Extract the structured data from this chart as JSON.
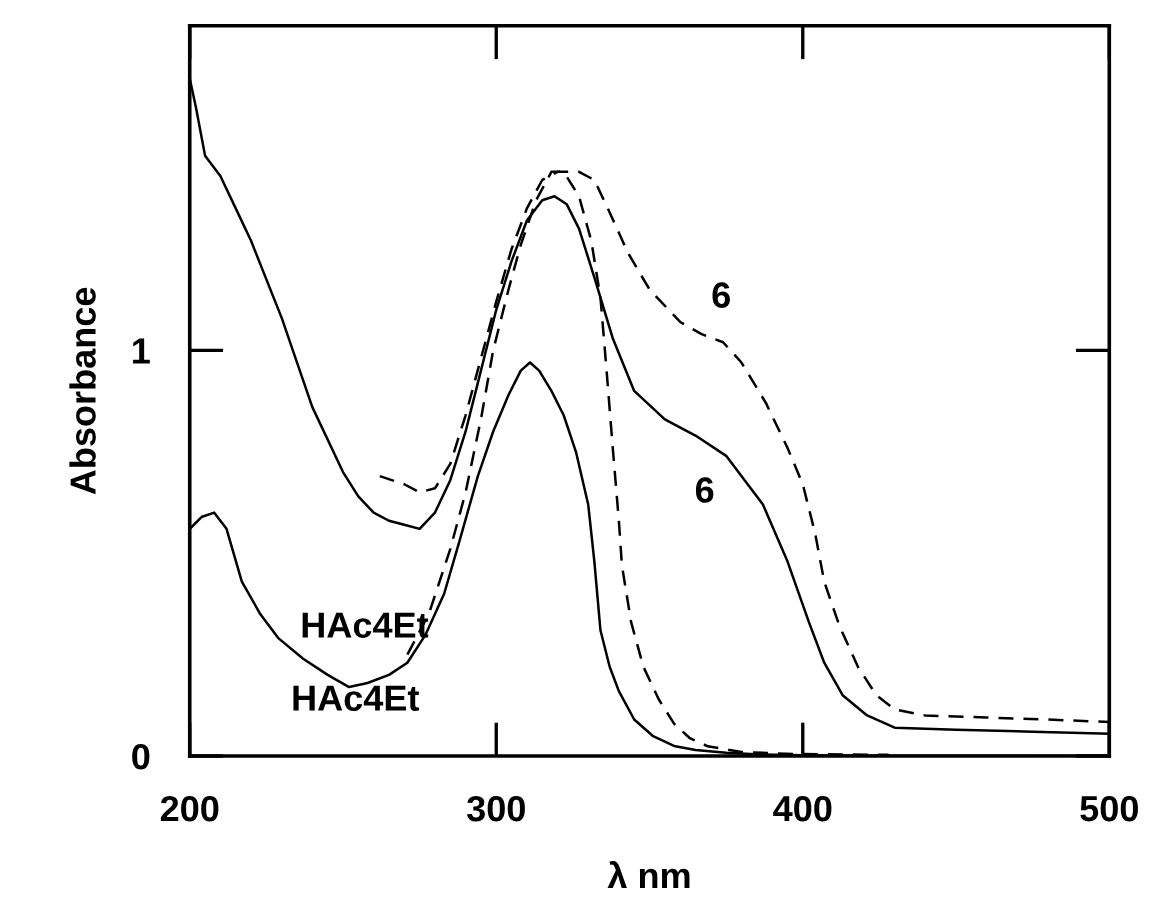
{
  "chart_data": {
    "type": "line",
    "xlabel": "λ nm",
    "ylabel": "Absorbance",
    "xlim": [
      200,
      500
    ],
    "ylim": [
      0,
      1.8
    ],
    "xticks": [
      200,
      300,
      400,
      500
    ],
    "yticks": [
      0,
      1
    ],
    "grid": false,
    "marker": "none",
    "series": [
      {
        "color": "#000000",
        "line_style": "solid",
        "x": [
          200,
          202,
          205,
          210,
          215,
          220,
          230,
          240,
          250,
          255,
          260,
          265,
          270,
          275,
          280,
          285,
          290,
          295,
          300,
          305,
          310,
          315,
          319,
          323,
          327,
          332,
          338,
          345,
          355,
          365,
          375,
          387,
          395,
          402,
          407,
          413,
          421,
          430,
          450,
          475,
          500
        ],
        "values": [
          1.67,
          1.6,
          1.48,
          1.43,
          1.35,
          1.27,
          1.08,
          0.86,
          0.7,
          0.64,
          0.6,
          0.58,
          0.57,
          0.56,
          0.6,
          0.68,
          0.8,
          0.95,
          1.1,
          1.22,
          1.32,
          1.37,
          1.38,
          1.36,
          1.3,
          1.18,
          1.03,
          0.9,
          0.83,
          0.79,
          0.74,
          0.62,
          0.48,
          0.33,
          0.23,
          0.15,
          0.1,
          0.07,
          0.065,
          0.06,
          0.055
        ]
      },
      {
        "color": "#000000",
        "line_style": "dashed",
        "x": [
          262,
          270,
          275,
          280,
          285,
          290,
          295,
          300,
          305,
          310,
          315,
          320,
          327,
          332,
          337,
          343,
          350,
          360,
          367,
          374,
          380,
          388,
          395,
          400,
          404,
          407,
          412,
          418,
          424,
          430,
          440,
          460,
          480,
          500
        ],
        "values": [
          0.69,
          0.67,
          0.65,
          0.66,
          0.72,
          0.84,
          0.98,
          1.12,
          1.25,
          1.35,
          1.42,
          1.44,
          1.44,
          1.42,
          1.34,
          1.24,
          1.15,
          1.07,
          1.04,
          1.02,
          0.97,
          0.87,
          0.76,
          0.67,
          0.55,
          0.43,
          0.32,
          0.22,
          0.15,
          0.115,
          0.1,
          0.095,
          0.09,
          0.084
        ]
      },
      {
        "color": "#000000",
        "line_style": "solid",
        "x": [
          200,
          204,
          208,
          212,
          217,
          223,
          229,
          237,
          245,
          252,
          258,
          265,
          271,
          277,
          283,
          288,
          294,
          299,
          304,
          308,
          311,
          314,
          318,
          322,
          326,
          330,
          332,
          334,
          337,
          340,
          345,
          351,
          358,
          365,
          375,
          386,
          400,
          430,
          500
        ],
        "values": [
          0.56,
          0.59,
          0.6,
          0.56,
          0.43,
          0.35,
          0.29,
          0.24,
          0.2,
          0.17,
          0.18,
          0.2,
          0.23,
          0.3,
          0.4,
          0.53,
          0.69,
          0.8,
          0.89,
          0.95,
          0.97,
          0.95,
          0.9,
          0.84,
          0.75,
          0.62,
          0.48,
          0.31,
          0.22,
          0.16,
          0.09,
          0.05,
          0.025,
          0.015,
          0.008,
          0.004,
          0.002,
          0.001,
          0
        ]
      },
      {
        "color": "#000000",
        "line_style": "dashed",
        "x": [
          271,
          278,
          285,
          290,
          295,
          299,
          304,
          308,
          313,
          318,
          322,
          327,
          331,
          334,
          336,
          338,
          340,
          341,
          344,
          348,
          353,
          358,
          363,
          369,
          380,
          397,
          428
        ],
        "values": [
          0.25,
          0.35,
          0.51,
          0.65,
          0.83,
          1.0,
          1.15,
          1.26,
          1.37,
          1.44,
          1.44,
          1.38,
          1.27,
          1.13,
          0.95,
          0.76,
          0.58,
          0.47,
          0.33,
          0.22,
          0.14,
          0.08,
          0.045,
          0.024,
          0.01,
          0.005,
          0.003
        ]
      }
    ],
    "annotations": [
      "6",
      "6",
      "HAc4Et",
      "HAc4Et"
    ]
  }
}
